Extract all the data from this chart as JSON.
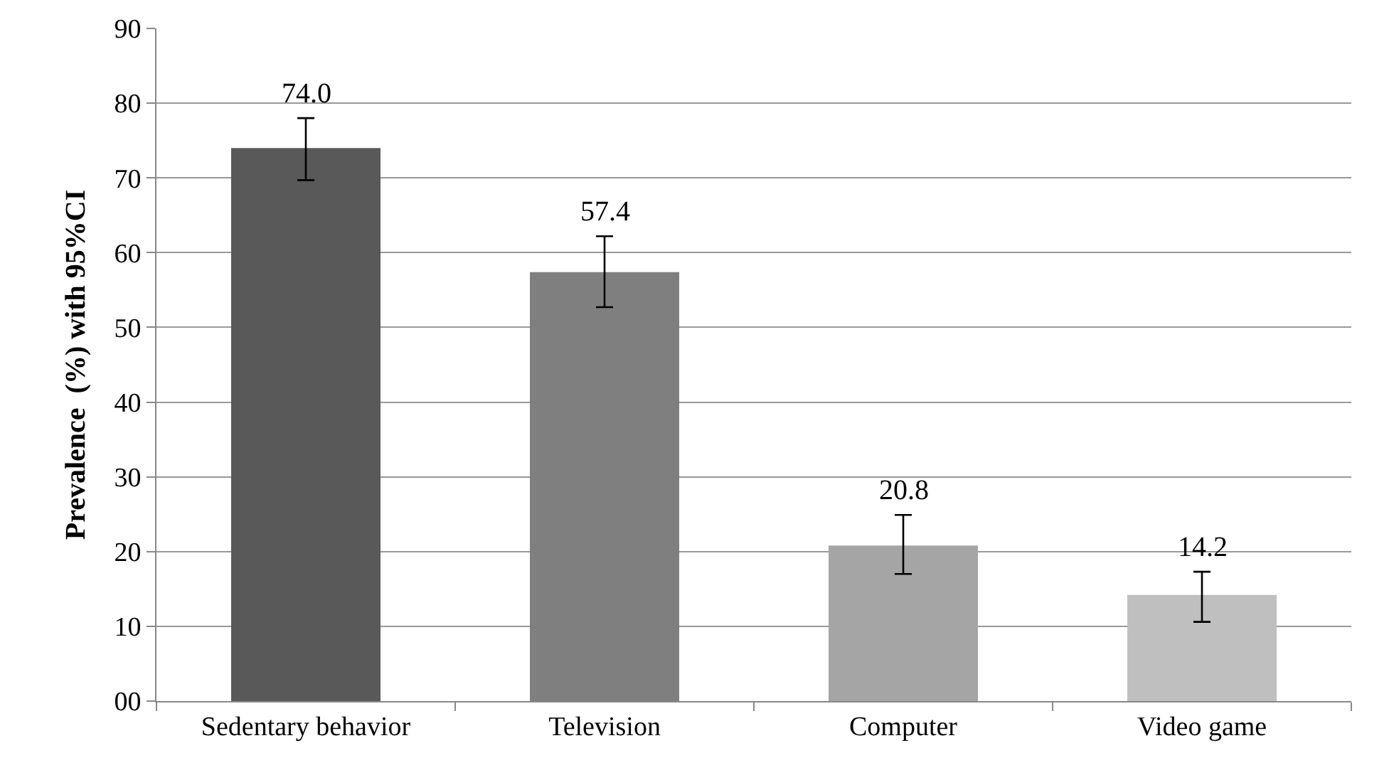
{
  "chart_data": {
    "type": "bar",
    "ylabel": "Prevalence  (%) with 95%CI",
    "categories": [
      "Sedentary behavior",
      "Television",
      "Computer",
      "Video game"
    ],
    "values": [
      74.0,
      57.4,
      20.8,
      14.2
    ],
    "colors": [
      "#595959",
      "#7f7f7f",
      "#a5a5a5",
      "#bfbfbf"
    ],
    "errors": [
      [
        69.7,
        78.0
      ],
      [
        52.7,
        62.2
      ],
      [
        17.0,
        24.9
      ],
      [
        10.6,
        17.3
      ]
    ],
    "value_labels": [
      "74.0",
      "57.4",
      "20.8",
      "14.2"
    ],
    "ylim": [
      0,
      90
    ],
    "yticks": [
      {
        "value": 0,
        "label": "00"
      },
      10,
      20,
      30,
      40,
      50,
      60,
      70,
      80,
      90
    ],
    "grid": "y"
  }
}
